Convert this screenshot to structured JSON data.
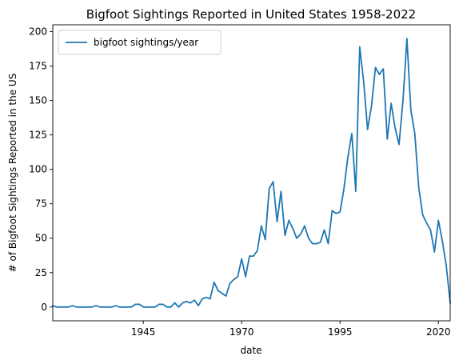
{
  "chart_data": {
    "type": "line",
    "title": "Bigfoot Sightings Reported in United States 1958-2022",
    "xlabel": "date",
    "ylabel": "# of Bigfoot Sightings Reported in the US",
    "xlim": [
      1922,
      2023
    ],
    "ylim": [
      -10,
      205
    ],
    "x_ticks": [
      1945,
      1970,
      1995,
      2020
    ],
    "y_ticks": [
      0,
      25,
      50,
      75,
      100,
      125,
      150,
      175,
      200
    ],
    "grid": false,
    "legend_position": "top-left",
    "series": [
      {
        "name": "bigfoot sightings/year",
        "color": "#1f77b4",
        "x": [
          1922,
          1923,
          1924,
          1925,
          1926,
          1927,
          1928,
          1929,
          1930,
          1931,
          1932,
          1933,
          1934,
          1935,
          1936,
          1937,
          1938,
          1939,
          1940,
          1941,
          1942,
          1943,
          1944,
          1945,
          1946,
          1947,
          1948,
          1949,
          1950,
          1951,
          1952,
          1953,
          1954,
          1955,
          1956,
          1957,
          1958,
          1959,
          1960,
          1961,
          1962,
          1963,
          1964,
          1965,
          1966,
          1967,
          1968,
          1969,
          1970,
          1971,
          1972,
          1973,
          1974,
          1975,
          1976,
          1977,
          1978,
          1979,
          1980,
          1981,
          1982,
          1983,
          1984,
          1985,
          1986,
          1987,
          1988,
          1989,
          1990,
          1991,
          1992,
          1993,
          1994,
          1995,
          1996,
          1997,
          1998,
          1999,
          2000,
          2001,
          2002,
          2003,
          2004,
          2005,
          2006,
          2007,
          2008,
          2009,
          2010,
          2011,
          2012,
          2013,
          2014,
          2015,
          2016,
          2017,
          2018,
          2019,
          2020,
          2021,
          2022,
          2023
        ],
        "values": [
          1,
          0,
          0,
          0,
          0,
          1,
          0,
          0,
          0,
          0,
          0,
          1,
          0,
          0,
          0,
          0,
          1,
          0,
          0,
          0,
          0,
          2,
          2,
          0,
          0,
          0,
          0,
          2,
          2,
          0,
          0,
          3,
          0,
          3,
          4,
          3,
          5,
          1,
          6,
          7,
          6,
          18,
          12,
          10,
          8,
          17,
          20,
          22,
          35,
          22,
          37,
          37,
          41,
          59,
          49,
          86,
          91,
          62,
          84,
          52,
          63,
          57,
          50,
          53,
          59,
          50,
          46,
          46,
          47,
          56,
          46,
          70,
          68,
          69,
          86,
          109,
          126,
          84,
          189,
          164,
          129,
          146,
          174,
          169,
          173,
          122,
          148,
          130,
          118,
          150,
          195,
          143,
          126,
          87,
          67,
          61,
          56,
          40,
          63,
          48,
          30,
          3
        ]
      }
    ]
  }
}
